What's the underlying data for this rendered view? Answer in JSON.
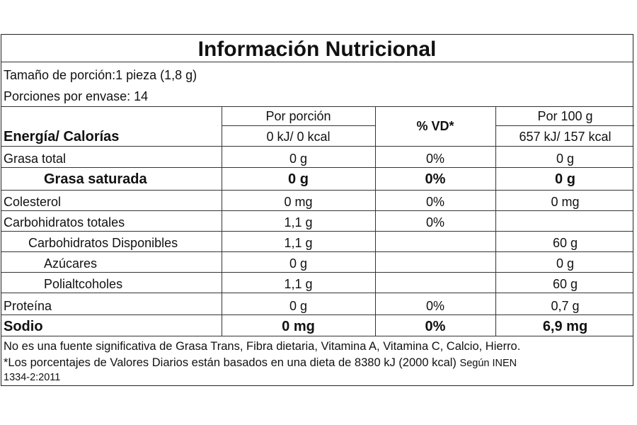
{
  "title": "Información Nutricional",
  "serving_size": "Tamaño de porción:1 pieza (1,8 g)",
  "servings_per_container": "Porciones por envase: 14",
  "headers": {
    "per_serving": "Por porción",
    "vd": "% VD*",
    "per_100g": "Por 100 g"
  },
  "energy": {
    "label": "Energía/ Calorías",
    "per_serving": "0 kJ/ 0 kcal",
    "per_100g": "657 kJ/ 157 kcal"
  },
  "rows": [
    {
      "label": "Grasa total",
      "per_serving": "0 g",
      "vd": "0%",
      "per_100g": "0 g"
    },
    {
      "label": "Grasa saturada",
      "per_serving": "0 g",
      "vd": "0%",
      "per_100g": "0 g"
    },
    {
      "label": "Colesterol",
      "per_serving": "0 mg",
      "vd": "0%",
      "per_100g": "0 mg"
    },
    {
      "label": "Carbohidratos totales",
      "per_serving": "1,1 g",
      "vd": "0%",
      "per_100g": ""
    },
    {
      "label": "Carbohidratos Disponibles",
      "per_serving": "1,1 g",
      "vd": "",
      "per_100g": "60 g"
    },
    {
      "label": "Azúcares",
      "per_serving": "0 g",
      "vd": "",
      "per_100g": "0 g"
    },
    {
      "label": "Polialtcoholes",
      "per_serving": "1,1 g",
      "vd": "",
      "per_100g": "60 g"
    },
    {
      "label": "Proteína",
      "per_serving": "0 g",
      "vd": "0%",
      "per_100g": "0,7 g"
    },
    {
      "label": "Sodio",
      "per_serving": "0 mg",
      "vd": "0%",
      "per_100g": "6,9 mg"
    }
  ],
  "footnotes": {
    "line1": "No es una fuente significativa de Grasa Trans, Fibra dietaria, Vitamina A, Vitamina C, Calcio, Hierro.",
    "line2": "*Los porcentajes de Valores Diarios están basados en una dieta de 8380 kJ (2000 kcal)",
    "inen": "Según INEN",
    "inen_code": "1334-2:2011"
  }
}
